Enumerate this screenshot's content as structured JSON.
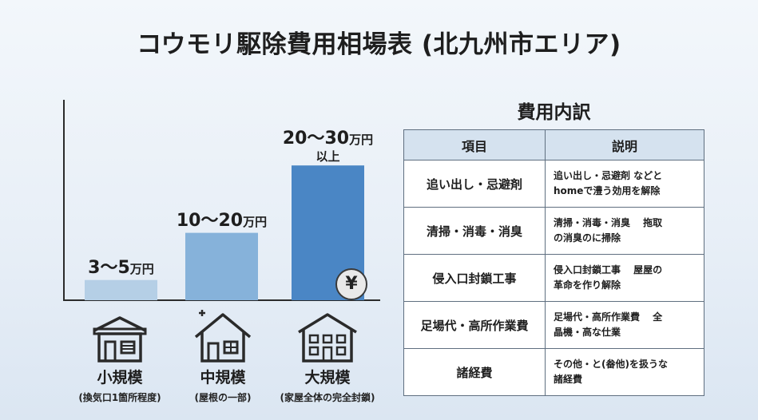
{
  "title": "コウモリ駆除費用相場表 (北九州市エリア)",
  "chart_data": {
    "type": "bar",
    "categories": [
      "小規模",
      "中規模",
      "大規模"
    ],
    "series": [
      {
        "values": [
          3,
          10,
          20
        ]
      }
    ],
    "bar_labels": [
      {
        "range": "3〜5",
        "unit": "万円",
        "extra": ""
      },
      {
        "range": "10〜20",
        "unit": "万円",
        "extra": ""
      },
      {
        "range": "20〜30",
        "unit": "万円",
        "extra": "以上"
      }
    ],
    "category_notes": [
      "(換気口1箇所程度)",
      "(屋根の一部)",
      "(家屋全体の完全封鎖)"
    ],
    "colors": [
      "#b5cfe6",
      "#86b2da",
      "#4a86c5"
    ],
    "ylim": [
      0,
      25
    ],
    "grid": false,
    "badge": "¥"
  },
  "breakdown": {
    "title": "費用内訳",
    "headers": {
      "item": "項目",
      "desc": "説明"
    },
    "rows": [
      {
        "item": "追い出し・忌避剤",
        "desc": [
          "追い出し・忌避剤 などと",
          "homeで澧う効用を解除"
        ]
      },
      {
        "item": "清掃・消毒・消臭",
        "desc": [
          "清掃・消毒・消臭　 拖取",
          "の消臭のに掃除"
        ]
      },
      {
        "item": "侵入口封鎖工事",
        "desc": [
          "侵入口封鎖工事　 屋屋の",
          "革命を作り解除"
        ]
      },
      {
        "item": "足場代・高所作業費",
        "desc": [
          "足場代・高所作業費　 全",
          "晶機・高な仕業"
        ]
      },
      {
        "item": "諸経費",
        "desc": [
          "その他・と(畚他)を扱うな",
          "諸経費"
        ]
      }
    ]
  }
}
